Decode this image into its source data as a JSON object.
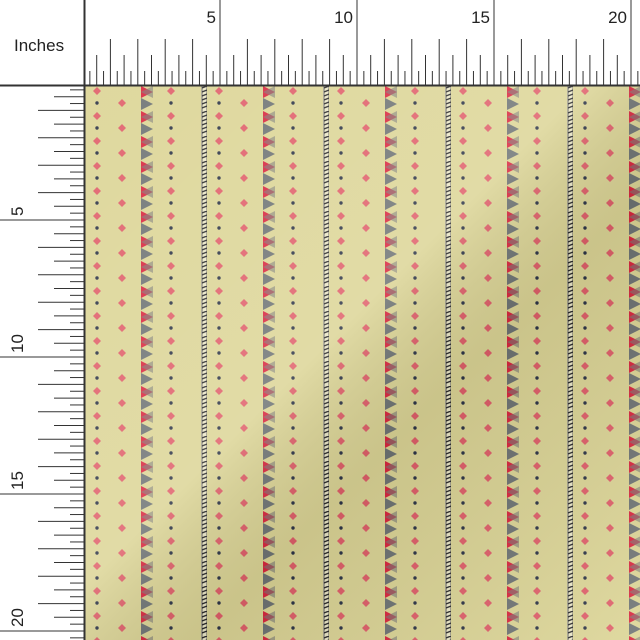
{
  "ruler_unit": "Inches",
  "top_ruler": {
    "labels": [
      "5",
      "10",
      "15",
      "20"
    ]
  },
  "left_ruler": {
    "labels": [
      "5",
      "10",
      "15",
      "20"
    ]
  }
}
